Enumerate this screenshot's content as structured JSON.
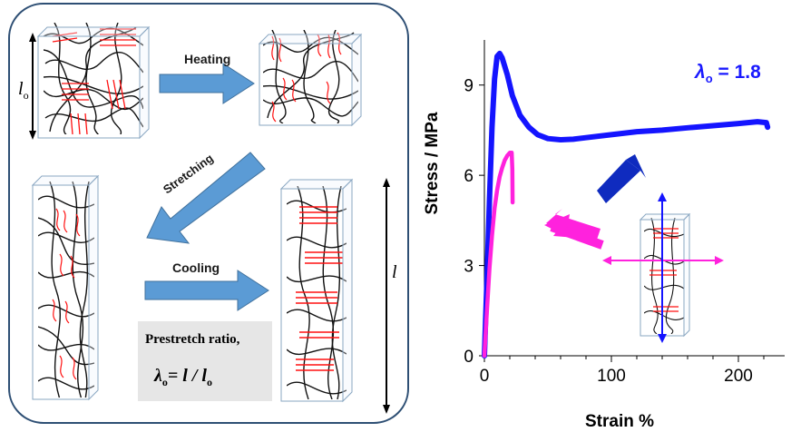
{
  "schematic": {
    "step_heating": "Heating",
    "step_stretching": "Stretching",
    "step_cooling": "Cooling",
    "length_initial_symbol": "l",
    "length_initial_subscript": "o",
    "length_final_symbol": "l",
    "prestretch_label": "Prestretch ratio,",
    "prestretch_lambda": "λ",
    "prestretch_lambda_sub": "o",
    "prestretch_equation": "= l / l",
    "prestretch_equation_sub": "o"
  },
  "chart_data": {
    "type": "line",
    "xlabel": "Strain %",
    "ylabel": "Stress / MPa",
    "xlim": [
      0,
      230
    ],
    "ylim": [
      0,
      10.5
    ],
    "xticks": [
      0,
      100,
      200
    ],
    "yticks": [
      0,
      3,
      6,
      9
    ],
    "grid": false,
    "annotation": {
      "symbol": "λ",
      "subscript": "o",
      "text": " = 1.8",
      "color": "#1a1aff"
    },
    "series": [
      {
        "color": "#1414ff",
        "x": [
          0,
          2,
          4,
          6,
          8,
          10,
          12,
          14,
          18,
          22,
          28,
          35,
          42,
          50,
          60,
          70,
          80,
          100,
          120,
          140,
          160,
          180,
          200,
          215,
          222,
          223
        ],
        "y": [
          0,
          2.5,
          5.2,
          7.6,
          9.2,
          9.95,
          10.05,
          9.9,
          9.35,
          8.65,
          8.0,
          7.6,
          7.35,
          7.22,
          7.18,
          7.2,
          7.25,
          7.35,
          7.45,
          7.5,
          7.58,
          7.65,
          7.72,
          7.78,
          7.75,
          7.6
        ]
      },
      {
        "color": "#ff22dd",
        "x": [
          0,
          2,
          4,
          6,
          8,
          10,
          12,
          14,
          16,
          18,
          20,
          21.5,
          22,
          22.2
        ],
        "y": [
          0,
          1.5,
          2.9,
          4.0,
          4.9,
          5.5,
          5.95,
          6.25,
          6.5,
          6.65,
          6.75,
          6.75,
          6.2,
          5.1
        ]
      }
    ]
  }
}
